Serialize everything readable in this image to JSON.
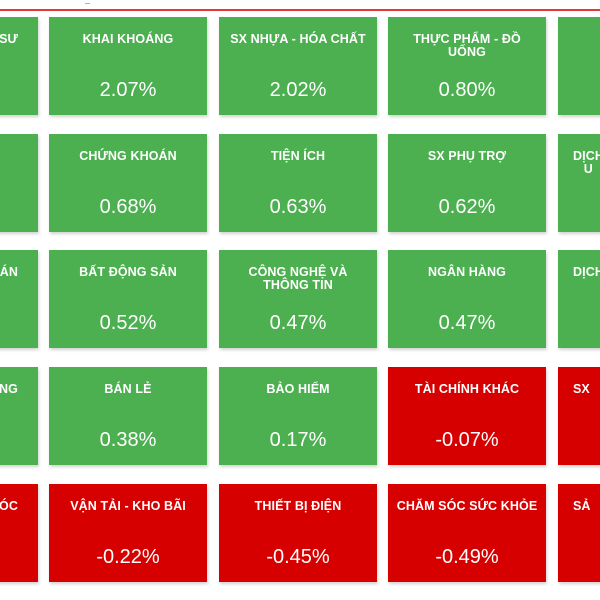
{
  "heatmap": {
    "rows": [
      [
        {
          "name": "SƯ",
          "pct": "",
          "trend": "up",
          "clip": "left"
        },
        {
          "name": "KHAI KHOÁNG",
          "pct": "2.07%",
          "trend": "up",
          "clip": ""
        },
        {
          "name": "SX NHỰA - HÓA CHẤT",
          "pct": "2.02%",
          "trend": "up",
          "clip": ""
        },
        {
          "name": "THỰC PHẨM - ĐỒ UỐNG",
          "pct": "0.80%",
          "trend": "up",
          "clip": ""
        },
        {
          "name": "",
          "pct": "",
          "trend": "up",
          "clip": "right"
        }
      ],
      [
        {
          "name": "",
          "pct": "",
          "trend": "up",
          "clip": "left"
        },
        {
          "name": "CHỨNG KHOÁN",
          "pct": "0.68%",
          "trend": "up",
          "clip": ""
        },
        {
          "name": "TIỆN ÍCH",
          "pct": "0.63%",
          "trend": "up",
          "clip": ""
        },
        {
          "name": "SX PHỤ TRỢ",
          "pct": "0.62%",
          "trend": "up",
          "clip": ""
        },
        {
          "name": "DỊCH U",
          "pct": "",
          "trend": "up",
          "clip": "right"
        }
      ],
      [
        {
          "name": "ÁN",
          "pct": "",
          "trend": "up",
          "clip": "left"
        },
        {
          "name": "BẤT ĐỘNG SẢN",
          "pct": "0.52%",
          "trend": "up",
          "clip": ""
        },
        {
          "name": "CÔNG NGHỆ VÀ THÔNG TIN",
          "pct": "0.47%",
          "trend": "up",
          "clip": ""
        },
        {
          "name": "NGÂN HÀNG",
          "pct": "0.47%",
          "trend": "up",
          "clip": ""
        },
        {
          "name": "DỊCH V",
          "pct": "",
          "trend": "up",
          "clip": "right"
        }
      ],
      [
        {
          "name": "NG",
          "pct": "",
          "trend": "up",
          "clip": "left"
        },
        {
          "name": "BÁN LẺ",
          "pct": "0.38%",
          "trend": "up",
          "clip": ""
        },
        {
          "name": "BẢO HIỂM",
          "pct": "0.17%",
          "trend": "up",
          "clip": ""
        },
        {
          "name": "TÀI CHÍNH KHÁC",
          "pct": "-0.07%",
          "trend": "down",
          "clip": ""
        },
        {
          "name": "SX",
          "pct": "",
          "trend": "down",
          "clip": "right"
        }
      ],
      [
        {
          "name": "MÓC",
          "pct": "",
          "trend": "down",
          "clip": "left"
        },
        {
          "name": "VẬN TẢI - KHO BÃI",
          "pct": "-0.22%",
          "trend": "down",
          "clip": ""
        },
        {
          "name": "THIẾT BỊ ĐIỆN",
          "pct": "-0.45%",
          "trend": "down",
          "clip": ""
        },
        {
          "name": "CHĂM SÓC SỨC KHỎE",
          "pct": "-0.49%",
          "trend": "down",
          "clip": ""
        },
        {
          "name": "SẢ",
          "pct": "",
          "trend": "down",
          "clip": "right"
        }
      ]
    ]
  },
  "colors": {
    "up": "#4caf50",
    "down": "#d60000",
    "top_line": "#e53935"
  }
}
